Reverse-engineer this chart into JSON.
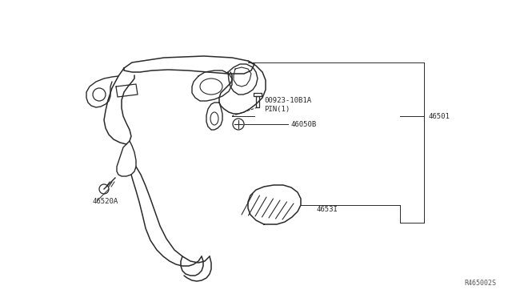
{
  "bg_color": "#ffffff",
  "line_color": "#2a2a2a",
  "text_color": "#2a2a2a",
  "ref_code": "R465002S",
  "font_size": 6.5,
  "label_46501": "46501",
  "label_46050B": "46050B",
  "label_pin": "00923-10B1A\nPIN(1)",
  "label_46520A": "46520A",
  "label_4653I": "4653I"
}
